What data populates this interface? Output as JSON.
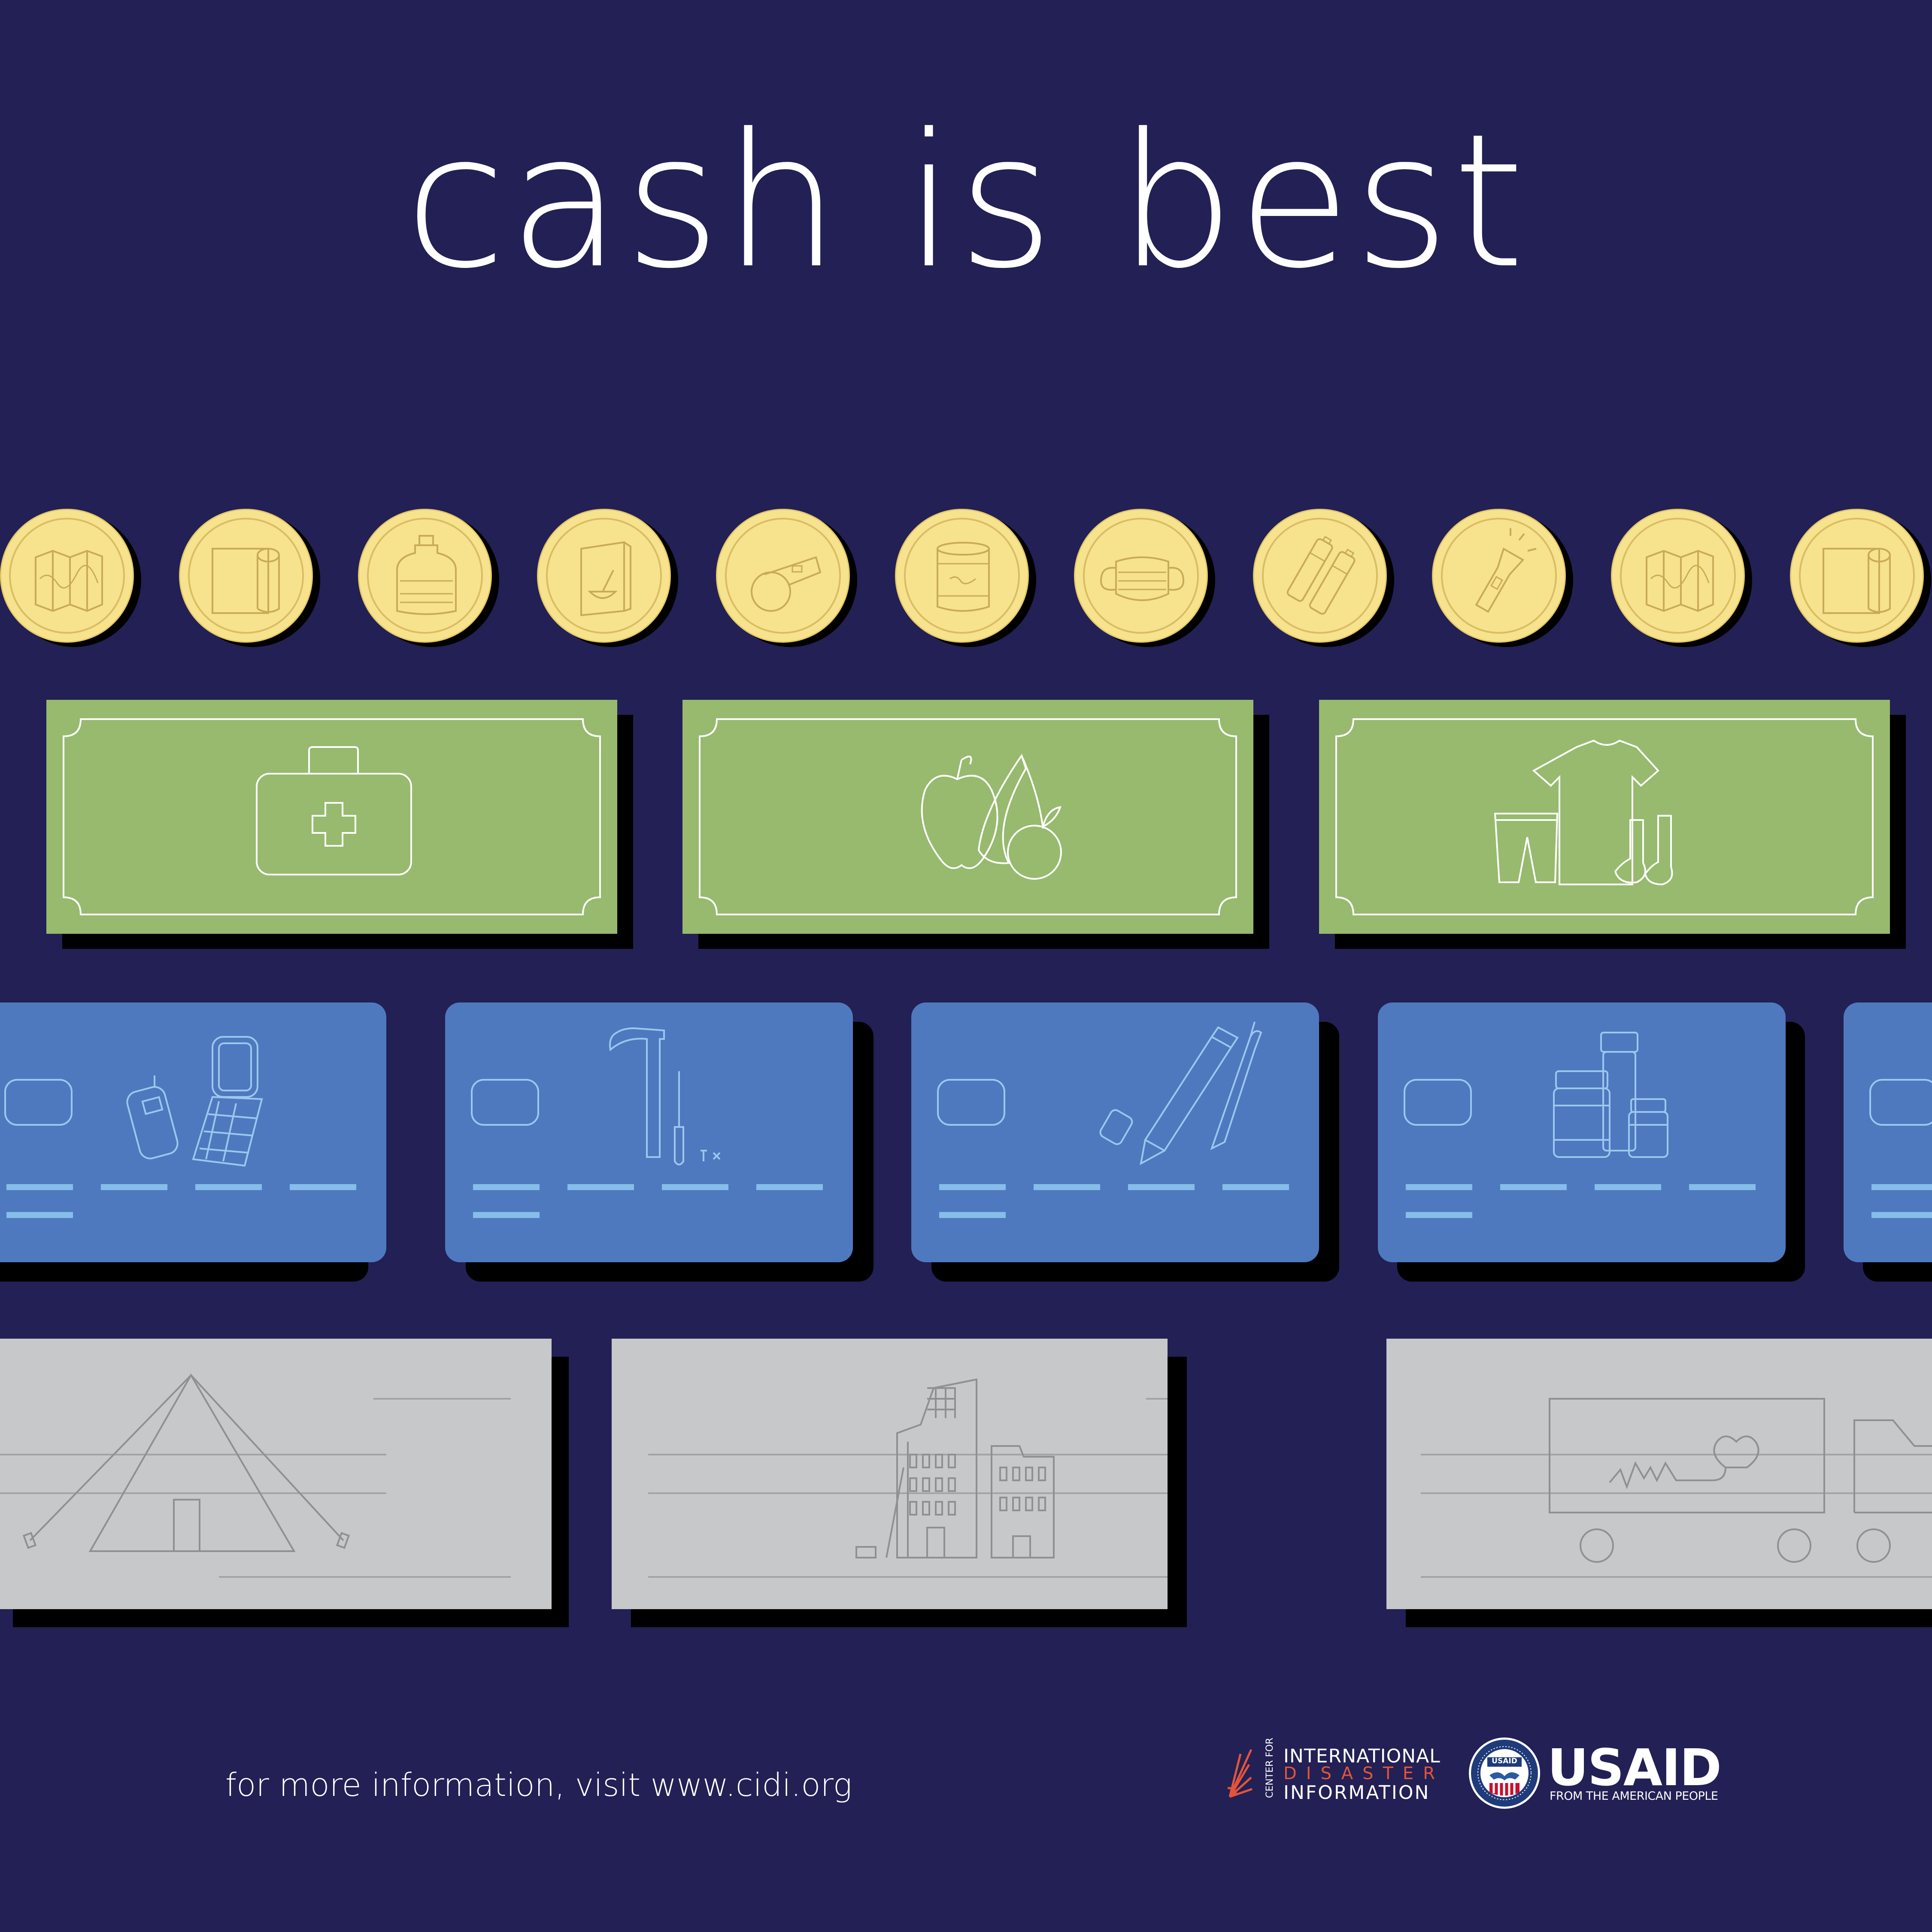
{
  "title": "cash is best",
  "coins": [
    {
      "icon": "map-icon"
    },
    {
      "icon": "paper-towel-icon"
    },
    {
      "icon": "water-jug-icon"
    },
    {
      "icon": "cereal-box-icon"
    },
    {
      "icon": "whistle-icon"
    },
    {
      "icon": "canned-food-icon"
    },
    {
      "icon": "face-mask-icon"
    },
    {
      "icon": "batteries-icon"
    },
    {
      "icon": "flashlight-icon"
    },
    {
      "icon": "map-icon"
    },
    {
      "icon": "paper-towel-icon"
    }
  ],
  "bills": [
    {
      "icon": "first-aid-kit-icon"
    },
    {
      "icon": "fruit-icon"
    },
    {
      "icon": "clothing-icon"
    }
  ],
  "cards": [
    {
      "icon": "mobile-phones-icon"
    },
    {
      "icon": "tools-icon"
    },
    {
      "icon": "pencils-icon"
    },
    {
      "icon": "medicine-bottles-icon"
    },
    {
      "icon": "partial-card"
    }
  ],
  "checks": [
    {
      "icon": "tent-icon"
    },
    {
      "icon": "damaged-buildings-icon"
    },
    {
      "icon": "medical-truck-icon"
    }
  ],
  "footer": {
    "info_text": "for more information, visit www.cidi.org"
  },
  "cidi_logo": {
    "center_for": "CENTER FOR",
    "line1": "INTERNATIONAL",
    "line2": "DISASTER",
    "line3": "INFORMATION"
  },
  "usaid_logo": {
    "name": "USAID",
    "tagline": "FROM THE AMERICAN PEOPLE",
    "seal_text": "USAID"
  },
  "colors": {
    "background": "#222054",
    "coin": "#f7e28e",
    "bill": "#97ba6e",
    "card": "#4e79be",
    "check": "#c7c8ca",
    "cidi_accent": "#e2553b"
  }
}
